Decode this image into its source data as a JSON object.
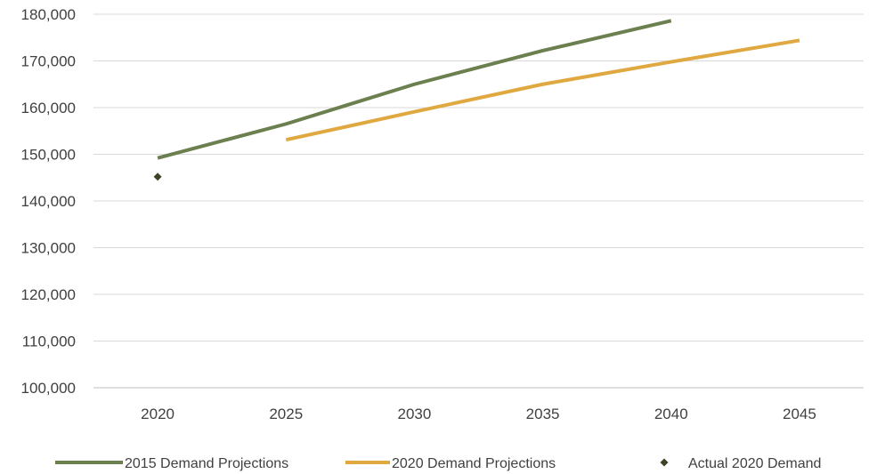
{
  "chart_data": {
    "type": "line",
    "x": [
      2020,
      2025,
      2030,
      2035,
      2040,
      2045
    ],
    "x_tick_labels": [
      "2020",
      "2025",
      "2030",
      "2035",
      "2040",
      "2045"
    ],
    "y_tick_labels": [
      "100,000",
      "110,000",
      "120,000",
      "130,000",
      "140,000",
      "150,000",
      "160,000",
      "170,000",
      "180,000"
    ],
    "ylim": [
      100000,
      180000
    ],
    "grid": true,
    "legend_position": "bottom",
    "series": [
      {
        "name": "2015 Demand Projections",
        "kind": "line",
        "color": "#6b7f4f",
        "points": [
          {
            "x": 2020,
            "y": 149200
          },
          {
            "x": 2025,
            "y": 156500
          },
          {
            "x": 2030,
            "y": 165000
          },
          {
            "x": 2035,
            "y": 172200
          },
          {
            "x": 2040,
            "y": 178600
          }
        ]
      },
      {
        "name": "2020 Demand Projections",
        "kind": "line",
        "color": "#e0a841",
        "points": [
          {
            "x": 2025,
            "y": 153100
          },
          {
            "x": 2030,
            "y": 159100
          },
          {
            "x": 2035,
            "y": 165000
          },
          {
            "x": 2040,
            "y": 169800
          },
          {
            "x": 2045,
            "y": 174400
          }
        ]
      },
      {
        "name": "Actual 2020 Demand",
        "kind": "marker",
        "marker": "diamond",
        "color": "#3d4128",
        "points": [
          {
            "x": 2020,
            "y": 145200
          }
        ]
      }
    ]
  }
}
